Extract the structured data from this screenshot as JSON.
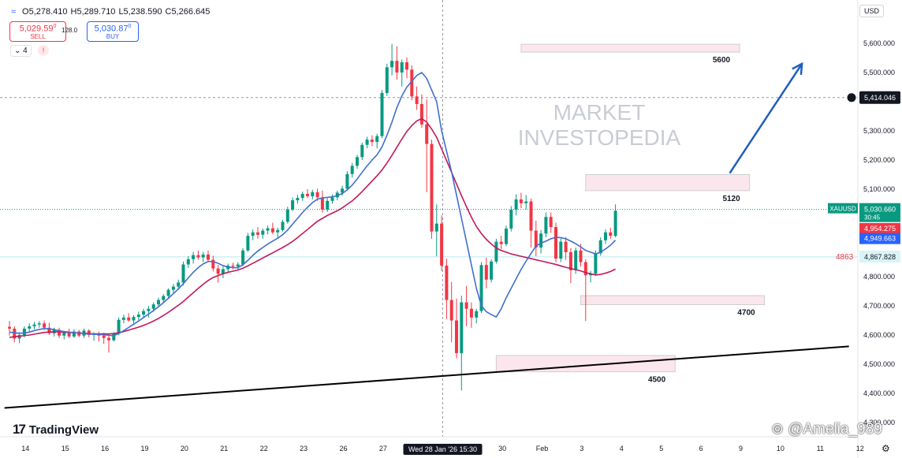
{
  "header": {
    "symbol_icon": "wave-icon",
    "open": "O5,278.410",
    "high": "H5,289.710",
    "low": "L5,238.590",
    "close": "C5,266.645",
    "sell_price": "5,029.59",
    "sell_price_sup": "0",
    "sell_label": "SELL",
    "spread": "128.0",
    "buy_price": "5,030.87",
    "buy_price_sup": "0",
    "buy_label": "BUY",
    "indicators_toggle": "⌄ 4",
    "alert_badge": "!",
    "currency": "USD"
  },
  "branding": {
    "logo_text": "TradingView",
    "watermark_line1": "MARKET",
    "watermark_line2": "INVESTOPEDIA",
    "credit": "@Amelia_989"
  },
  "chart_data": {
    "type": "candlestick",
    "symbol": "XAUUSD",
    "ylim": [
      4380,
      5660
    ],
    "y_ticks": [
      {
        "v": 5600,
        "label": "5,600.000"
      },
      {
        "v": 5500,
        "label": "5,500.000"
      },
      {
        "v": 5300,
        "label": "5,300.000"
      },
      {
        "v": 5200,
        "label": "5,200.000"
      },
      {
        "v": 5100,
        "label": "5,100.000"
      },
      {
        "v": 4800,
        "label": "4,800.000"
      },
      {
        "v": 4700,
        "label": "4,700.000"
      },
      {
        "v": 4600,
        "label": "4,600.000"
      },
      {
        "v": 4500,
        "label": "4,500.000"
      },
      {
        "v": 4400,
        "label": "4,400.000"
      },
      {
        "v": 4300,
        "label": "4,300.000"
      }
    ],
    "x_ticks": [
      {
        "i": 1,
        "label": "14"
      },
      {
        "i": 9,
        "label": "15"
      },
      {
        "i": 17,
        "label": "16"
      },
      {
        "i": 25,
        "label": "19"
      },
      {
        "i": 33,
        "label": "20"
      },
      {
        "i": 41,
        "label": "21"
      },
      {
        "i": 49,
        "label": "22"
      },
      {
        "i": 57,
        "label": "23"
      },
      {
        "i": 65,
        "label": "26"
      },
      {
        "i": 73,
        "label": "27"
      },
      {
        "i": 97,
        "label": "30"
      },
      {
        "i": 105,
        "label": "Feb"
      },
      {
        "i": 113,
        "label": "3"
      },
      {
        "i": 121,
        "label": "4"
      },
      {
        "i": 129,
        "label": "5"
      },
      {
        "i": 137,
        "label": "6"
      },
      {
        "i": 145,
        "label": "9"
      },
      {
        "i": 153,
        "label": "10"
      },
      {
        "i": 161,
        "label": "11"
      },
      {
        "i": 169,
        "label": "12"
      }
    ],
    "crosshair": {
      "i": 85,
      "label": "Wed 28 Jan '26  15:30"
    },
    "crosshair_price": {
      "v": 5414.046,
      "label": "5,414.046"
    },
    "price_badges": [
      {
        "v": 5030.66,
        "label": "XAUUSD",
        "value": "5,030.660",
        "sub": "30:45",
        "color": "#089981"
      },
      {
        "v": 4954.275,
        "label": "",
        "value": "4,954.275",
        "sub": "",
        "color": "#f23645"
      },
      {
        "v": 4949.663,
        "label": "",
        "value": "4,949.663",
        "sub": "",
        "color": "#2962ff"
      },
      {
        "v": 4867.828,
        "label": "4863",
        "value": "4,867.828",
        "sub": "",
        "color": "#d9f3f7"
      }
    ],
    "zones": [
      {
        "v1": 5570,
        "v2": 5597,
        "i1": 103,
        "i2": 147,
        "label": "5600"
      },
      {
        "v1": 5095,
        "v2": 5150,
        "i1": 116,
        "i2": 149,
        "label": "5120"
      },
      {
        "v1": 4704,
        "v2": 4735,
        "i1": 115,
        "i2": 152,
        "label": "4700"
      },
      {
        "v1": 4474,
        "v2": 4530,
        "i1": 98,
        "i2": 134,
        "label": "4500"
      }
    ],
    "trendline": {
      "i1": -1,
      "v1": 4350,
      "i2": 169,
      "v2": 4561
    },
    "arrow": {
      "i1": 145,
      "v1": 5155,
      "i2": 157,
      "v2": 5530
    },
    "candles": [
      {
        "o": 4628,
        "h": 4648,
        "l": 4598,
        "c": 4622
      },
      {
        "o": 4622,
        "h": 4630,
        "l": 4575,
        "c": 4588
      },
      {
        "o": 4588,
        "h": 4610,
        "l": 4572,
        "c": 4600
      },
      {
        "o": 4600,
        "h": 4630,
        "l": 4592,
        "c": 4622
      },
      {
        "o": 4622,
        "h": 4640,
        "l": 4610,
        "c": 4630
      },
      {
        "o": 4630,
        "h": 4645,
        "l": 4620,
        "c": 4636
      },
      {
        "o": 4636,
        "h": 4648,
        "l": 4625,
        "c": 4640
      },
      {
        "o": 4640,
        "h": 4650,
        "l": 4618,
        "c": 4625
      },
      {
        "o": 4625,
        "h": 4642,
        "l": 4600,
        "c": 4606
      },
      {
        "o": 4606,
        "h": 4625,
        "l": 4595,
        "c": 4618
      },
      {
        "o": 4618,
        "h": 4625,
        "l": 4590,
        "c": 4598
      },
      {
        "o": 4598,
        "h": 4612,
        "l": 4585,
        "c": 4608
      },
      {
        "o": 4608,
        "h": 4622,
        "l": 4590,
        "c": 4595
      },
      {
        "o": 4595,
        "h": 4620,
        "l": 4590,
        "c": 4612
      },
      {
        "o": 4612,
        "h": 4618,
        "l": 4592,
        "c": 4598
      },
      {
        "o": 4598,
        "h": 4622,
        "l": 4590,
        "c": 4615
      },
      {
        "o": 4615,
        "h": 4620,
        "l": 4592,
        "c": 4600
      },
      {
        "o": 4600,
        "h": 4610,
        "l": 4580,
        "c": 4604
      },
      {
        "o": 4604,
        "h": 4612,
        "l": 4578,
        "c": 4598
      },
      {
        "o": 4598,
        "h": 4608,
        "l": 4570,
        "c": 4590
      },
      {
        "o": 4590,
        "h": 4602,
        "l": 4540,
        "c": 4582
      },
      {
        "o": 4582,
        "h": 4610,
        "l": 4578,
        "c": 4605
      },
      {
        "o": 4605,
        "h": 4660,
        "l": 4600,
        "c": 4652
      },
      {
        "o": 4652,
        "h": 4670,
        "l": 4640,
        "c": 4660
      },
      {
        "o": 4660,
        "h": 4675,
        "l": 4645,
        "c": 4650
      },
      {
        "o": 4650,
        "h": 4668,
        "l": 4638,
        "c": 4662
      },
      {
        "o": 4662,
        "h": 4680,
        "l": 4650,
        "c": 4670
      },
      {
        "o": 4670,
        "h": 4690,
        "l": 4662,
        "c": 4682
      },
      {
        "o": 4682,
        "h": 4700,
        "l": 4660,
        "c": 4690
      },
      {
        "o": 4690,
        "h": 4712,
        "l": 4680,
        "c": 4705
      },
      {
        "o": 4705,
        "h": 4728,
        "l": 4695,
        "c": 4720
      },
      {
        "o": 4720,
        "h": 4740,
        "l": 4712,
        "c": 4734
      },
      {
        "o": 4734,
        "h": 4760,
        "l": 4725,
        "c": 4755
      },
      {
        "o": 4755,
        "h": 4775,
        "l": 4745,
        "c": 4766
      },
      {
        "o": 4766,
        "h": 4790,
        "l": 4755,
        "c": 4780
      },
      {
        "o": 4780,
        "h": 4852,
        "l": 4770,
        "c": 4842
      },
      {
        "o": 4842,
        "h": 4870,
        "l": 4830,
        "c": 4860
      },
      {
        "o": 4860,
        "h": 4885,
        "l": 4845,
        "c": 4874
      },
      {
        "o": 4874,
        "h": 4890,
        "l": 4858,
        "c": 4866
      },
      {
        "o": 4866,
        "h": 4885,
        "l": 4850,
        "c": 4876
      },
      {
        "o": 4876,
        "h": 4890,
        "l": 4850,
        "c": 4858
      },
      {
        "o": 4858,
        "h": 4872,
        "l": 4818,
        "c": 4828
      },
      {
        "o": 4828,
        "h": 4840,
        "l": 4780,
        "c": 4810
      },
      {
        "o": 4810,
        "h": 4835,
        "l": 4795,
        "c": 4826
      },
      {
        "o": 4826,
        "h": 4845,
        "l": 4815,
        "c": 4838
      },
      {
        "o": 4838,
        "h": 4848,
        "l": 4825,
        "c": 4835
      },
      {
        "o": 4835,
        "h": 4850,
        "l": 4825,
        "c": 4842
      },
      {
        "o": 4842,
        "h": 4898,
        "l": 4836,
        "c": 4890
      },
      {
        "o": 4890,
        "h": 4950,
        "l": 4885,
        "c": 4940
      },
      {
        "o": 4940,
        "h": 4962,
        "l": 4925,
        "c": 4952
      },
      {
        "o": 4952,
        "h": 4970,
        "l": 4930,
        "c": 4944
      },
      {
        "o": 4944,
        "h": 4965,
        "l": 4930,
        "c": 4958
      },
      {
        "o": 4958,
        "h": 4975,
        "l": 4945,
        "c": 4966
      },
      {
        "o": 4966,
        "h": 4985,
        "l": 4945,
        "c": 4952
      },
      {
        "o": 4952,
        "h": 4968,
        "l": 4935,
        "c": 4960
      },
      {
        "o": 4960,
        "h": 4995,
        "l": 4955,
        "c": 4988
      },
      {
        "o": 4988,
        "h": 5040,
        "l": 4982,
        "c": 5030
      },
      {
        "o": 5030,
        "h": 5072,
        "l": 5025,
        "c": 5062
      },
      {
        "o": 5062,
        "h": 5080,
        "l": 5050,
        "c": 5070
      },
      {
        "o": 5070,
        "h": 5092,
        "l": 5060,
        "c": 5084
      },
      {
        "o": 5084,
        "h": 5100,
        "l": 5070,
        "c": 5076
      },
      {
        "o": 5076,
        "h": 5098,
        "l": 5065,
        "c": 5090
      },
      {
        "o": 5090,
        "h": 5102,
        "l": 5060,
        "c": 5072
      },
      {
        "o": 5072,
        "h": 5095,
        "l": 5020,
        "c": 5030
      },
      {
        "o": 5030,
        "h": 5070,
        "l": 5022,
        "c": 5060
      },
      {
        "o": 5060,
        "h": 5082,
        "l": 5050,
        "c": 5072
      },
      {
        "o": 5072,
        "h": 5095,
        "l": 5062,
        "c": 5088
      },
      {
        "o": 5088,
        "h": 5112,
        "l": 5078,
        "c": 5102
      },
      {
        "o": 5102,
        "h": 5162,
        "l": 5095,
        "c": 5152
      },
      {
        "o": 5152,
        "h": 5190,
        "l": 5140,
        "c": 5180
      },
      {
        "o": 5180,
        "h": 5218,
        "l": 5170,
        "c": 5210
      },
      {
        "o": 5210,
        "h": 5260,
        "l": 5200,
        "c": 5252
      },
      {
        "o": 5252,
        "h": 5280,
        "l": 5240,
        "c": 5270
      },
      {
        "o": 5270,
        "h": 5285,
        "l": 5248,
        "c": 5262
      },
      {
        "o": 5262,
        "h": 5290,
        "l": 5240,
        "c": 5282
      },
      {
        "o": 5282,
        "h": 5440,
        "l": 5275,
        "c": 5430
      },
      {
        "o": 5430,
        "h": 5530,
        "l": 5420,
        "c": 5518
      },
      {
        "o": 5518,
        "h": 5598,
        "l": 5490,
        "c": 5540
      },
      {
        "o": 5540,
        "h": 5590,
        "l": 5475,
        "c": 5500
      },
      {
        "o": 5500,
        "h": 5545,
        "l": 5452,
        "c": 5535
      },
      {
        "o": 5535,
        "h": 5552,
        "l": 5480,
        "c": 5510
      },
      {
        "o": 5510,
        "h": 5525,
        "l": 5405,
        "c": 5418
      },
      {
        "o": 5418,
        "h": 5452,
        "l": 5372,
        "c": 5392
      },
      {
        "o": 5392,
        "h": 5425,
        "l": 5310,
        "c": 5322
      },
      {
        "o": 5322,
        "h": 5408,
        "l": 5090,
        "c": 5255
      },
      {
        "o": 5255,
        "h": 5270,
        "l": 4930,
        "c": 4955
      },
      {
        "o": 4955,
        "h": 5048,
        "l": 4870,
        "c": 4982
      },
      {
        "o": 4982,
        "h": 5010,
        "l": 4820,
        "c": 4838
      },
      {
        "o": 4838,
        "h": 4862,
        "l": 4655,
        "c": 4720
      },
      {
        "o": 4720,
        "h": 4782,
        "l": 4575,
        "c": 4650
      },
      {
        "o": 4650,
        "h": 4725,
        "l": 4520,
        "c": 4538
      },
      {
        "o": 4538,
        "h": 4735,
        "l": 4410,
        "c": 4712
      },
      {
        "o": 4712,
        "h": 4768,
        "l": 4630,
        "c": 4690
      },
      {
        "o": 4690,
        "h": 4712,
        "l": 4625,
        "c": 4660
      },
      {
        "o": 4660,
        "h": 4690,
        "l": 4640,
        "c": 4682
      },
      {
        "o": 4682,
        "h": 4850,
        "l": 4675,
        "c": 4840
      },
      {
        "o": 4840,
        "h": 4865,
        "l": 4760,
        "c": 4790
      },
      {
        "o": 4790,
        "h": 4860,
        "l": 4780,
        "c": 4852
      },
      {
        "o": 4852,
        "h": 4930,
        "l": 4845,
        "c": 4920
      },
      {
        "o": 4920,
        "h": 4940,
        "l": 4895,
        "c": 4912
      },
      {
        "o": 4912,
        "h": 4975,
        "l": 4905,
        "c": 4965
      },
      {
        "o": 4965,
        "h": 5042,
        "l": 4955,
        "c": 5030
      },
      {
        "o": 5030,
        "h": 5082,
        "l": 5010,
        "c": 5065
      },
      {
        "o": 5065,
        "h": 5088,
        "l": 5035,
        "c": 5052
      },
      {
        "o": 5052,
        "h": 5080,
        "l": 5030,
        "c": 5058
      },
      {
        "o": 5058,
        "h": 5068,
        "l": 4900,
        "c": 4958
      },
      {
        "o": 4958,
        "h": 4992,
        "l": 4870,
        "c": 4900
      },
      {
        "o": 4900,
        "h": 4960,
        "l": 4880,
        "c": 4948
      },
      {
        "o": 4948,
        "h": 5020,
        "l": 4935,
        "c": 5005
      },
      {
        "o": 5005,
        "h": 5020,
        "l": 4950,
        "c": 4970
      },
      {
        "o": 4970,
        "h": 4985,
        "l": 4850,
        "c": 4862
      },
      {
        "o": 4862,
        "h": 4932,
        "l": 4850,
        "c": 4920
      },
      {
        "o": 4920,
        "h": 4936,
        "l": 4858,
        "c": 4884
      },
      {
        "o": 4884,
        "h": 4898,
        "l": 4778,
        "c": 4822
      },
      {
        "o": 4822,
        "h": 4900,
        "l": 4810,
        "c": 4890
      },
      {
        "o": 4890,
        "h": 4912,
        "l": 4835,
        "c": 4850
      },
      {
        "o": 4850,
        "h": 4860,
        "l": 4648,
        "c": 4805
      },
      {
        "o": 4805,
        "h": 4820,
        "l": 4780,
        "c": 4810
      },
      {
        "o": 4810,
        "h": 4890,
        "l": 4802,
        "c": 4880
      },
      {
        "o": 4880,
        "h": 4935,
        "l": 4872,
        "c": 4925
      },
      {
        "o": 4925,
        "h": 4962,
        "l": 4912,
        "c": 4952
      },
      {
        "o": 4952,
        "h": 4968,
        "l": 4930,
        "c": 4940
      },
      {
        "o": 4940,
        "h": 5048,
        "l": 4935,
        "c": 5026
      }
    ],
    "ma_fast": [
      4610,
      4608,
      4606,
      4607,
      4610,
      4615,
      4619,
      4622,
      4621,
      4619,
      4614,
      4612,
      4610,
      4608,
      4607,
      4605,
      4604,
      4603,
      4602,
      4601,
      4599,
      4598,
      4605,
      4615,
      4626,
      4637,
      4648,
      4660,
      4672,
      4684,
      4697,
      4711,
      4726,
      4742,
      4758,
      4776,
      4796,
      4815,
      4831,
      4844,
      4852,
      4852,
      4846,
      4838,
      4833,
      4831,
      4831,
      4841,
      4856,
      4873,
      4888,
      4900,
      4912,
      4922,
      4932,
      4944,
      4960,
      4980,
      5000,
      5020,
      5038,
      5054,
      5066,
      5070,
      5072,
      5074,
      5078,
      5085,
      5098,
      5114,
      5135,
      5158,
      5180,
      5200,
      5218,
      5245,
      5285,
      5330,
      5380,
      5420,
      5450,
      5470,
      5490,
      5500,
      5480,
      5440,
      5400,
      5300,
      5230,
      5160,
      5080,
      5000,
      4920,
      4840,
      4760,
      4700,
      4680,
      4670,
      4662,
      4690,
      4728,
      4760,
      4793,
      4825,
      4853,
      4880,
      4905,
      4915,
      4922,
      4930,
      4935,
      4934,
      4930,
      4922,
      4913,
      4902,
      4890,
      4884,
      4878,
      4884,
      4895,
      4908,
      4925
    ],
    "ma_slow": [
      4592,
      4594,
      4596,
      4598,
      4600,
      4603,
      4606,
      4609,
      4610,
      4611,
      4611,
      4610,
      4609,
      4608,
      4607,
      4606,
      4605,
      4604,
      4604,
      4604,
      4604,
      4605,
      4608,
      4612,
      4617,
      4622,
      4627,
      4633,
      4640,
      4648,
      4657,
      4667,
      4678,
      4690,
      4702,
      4715,
      4730,
      4745,
      4760,
      4774,
      4787,
      4797,
      4804,
      4810,
      4815,
      4819,
      4823,
      4829,
      4837,
      4846,
      4855,
      4864,
      4873,
      4882,
      4891,
      4900,
      4910,
      4921,
      4934,
      4948,
      4962,
      4976,
      4990,
      5000,
      5010,
      5018,
      5026,
      5036,
      5048,
      5060,
      5075,
      5092,
      5110,
      5128,
      5146,
      5166,
      5190,
      5216,
      5244,
      5272,
      5298,
      5318,
      5334,
      5342,
      5330,
      5306,
      5278,
      5238,
      5198,
      5158,
      5118,
      5078,
      5040,
      5004,
      4972,
      4948,
      4928,
      4912,
      4898,
      4890,
      4884,
      4878,
      4874,
      4870,
      4866,
      4862,
      4858,
      4854,
      4850,
      4846,
      4842,
      4837,
      4832,
      4828,
      4824,
      4820,
      4814,
      4810,
      4806,
      4808,
      4812,
      4818,
      4826
    ]
  }
}
